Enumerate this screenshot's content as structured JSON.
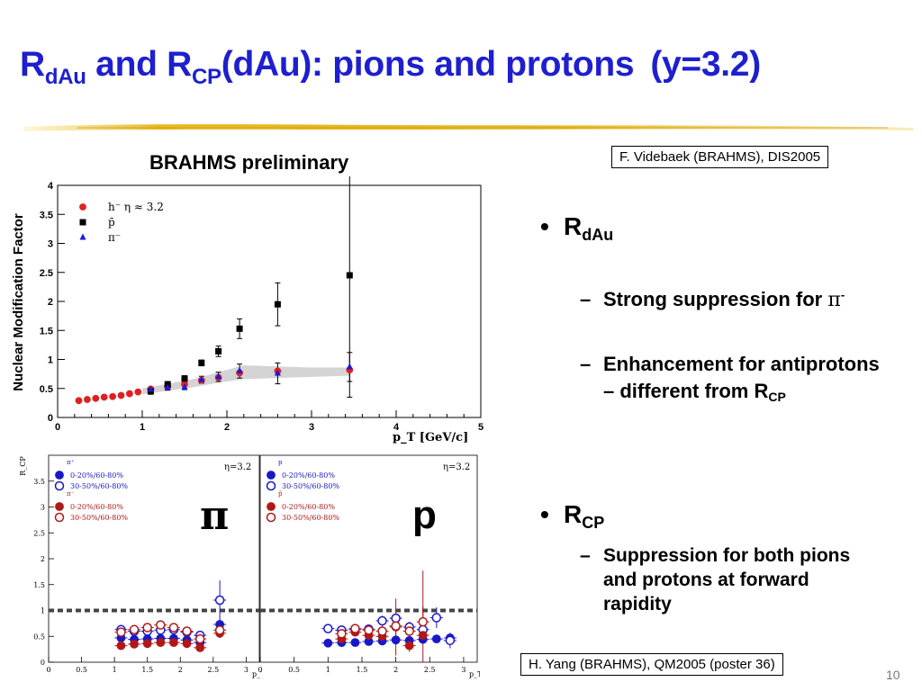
{
  "slide": {
    "title": {
      "r1": "R",
      "r1_sub": "dAu",
      "mid": " and R",
      "r2_sub": "CP",
      "rest": "(dAu): pions and protons",
      "y": "(y=3.2)"
    },
    "reference_top": "F. Videbaek (BRAHMS), DIS2005",
    "reference_bottom": "H. Yang (BRAHMS), QM2005 (poster 36)",
    "preliminary_label": "BRAHMS preliminary",
    "pi_symbol": "π",
    "p_symbol": "p",
    "page_number": "10",
    "bullets": [
      {
        "symbol": "•",
        "head": "R",
        "head_sub": "dAu",
        "subs": [
          {
            "dash": "–",
            "text": "Strong suppression for ",
            "pi": "π",
            "sup": "-"
          },
          {
            "dash": "–",
            "text": "Enhancement for antiprotons – different from R",
            "sub": "CP"
          }
        ]
      },
      {
        "symbol": "•",
        "head": "R",
        "head_sub": "CP",
        "subs": [
          {
            "dash": "–",
            "text": "Suppression for both pions and protons at forward rapidity"
          }
        ]
      }
    ]
  },
  "chart_data": [
    {
      "type": "scatter",
      "ylabel": "Nuclear Modification Factor",
      "xlabel": "p_T [GeV/c]",
      "xlim": [
        0,
        5
      ],
      "ylim": [
        0,
        4
      ],
      "xticks": [
        0,
        1,
        2,
        3,
        4,
        5
      ],
      "yticks": [
        0,
        0.5,
        1,
        1.5,
        2,
        2.5,
        3,
        3.5,
        4
      ],
      "legend": [
        {
          "label": "h⁻ η ≈ 3.2",
          "color": "#e02020",
          "marker": "circle"
        },
        {
          "label": "p̄",
          "color": "#000000",
          "marker": "square"
        },
        {
          "label": "π⁻",
          "color": "#1a1adc",
          "marker": "triangle"
        }
      ],
      "band": {
        "x": [
          1.0,
          1.3,
          1.6,
          1.9,
          2.2,
          2.6,
          3.0,
          3.45
        ],
        "low": [
          0.4,
          0.46,
          0.52,
          0.6,
          0.66,
          0.68,
          0.7,
          0.72
        ],
        "high": [
          0.5,
          0.58,
          0.66,
          0.78,
          0.9,
          0.88,
          0.86,
          0.86
        ],
        "color": "#d4d4d4"
      },
      "series": [
        {
          "name": "h⁻ η ≈ 3.2",
          "color": "#e02020",
          "marker": "circle",
          "x": [
            0.25,
            0.35,
            0.45,
            0.55,
            0.65,
            0.75,
            0.85,
            0.95,
            1.1,
            1.3,
            1.5,
            1.7,
            1.9,
            2.15,
            2.6,
            3.45
          ],
          "y": [
            0.29,
            0.31,
            0.33,
            0.35,
            0.36,
            0.38,
            0.41,
            0.44,
            0.49,
            0.53,
            0.57,
            0.64,
            0.69,
            0.77,
            0.8,
            0.82
          ],
          "err": [
            0,
            0,
            0,
            0,
            0,
            0,
            0,
            0,
            0,
            0,
            0,
            0,
            0,
            0,
            0,
            0
          ]
        },
        {
          "name": "p̄",
          "color": "#000000",
          "marker": "square",
          "x": [
            1.1,
            1.3,
            1.5,
            1.7,
            1.9,
            2.15,
            2.6,
            3.45
          ],
          "y": [
            0.45,
            0.57,
            0.67,
            0.94,
            1.14,
            1.53,
            1.95,
            2.45
          ],
          "err": [
            0.05,
            0.05,
            0.05,
            0.05,
            0.09,
            0.17,
            0.37,
            2.1
          ]
        },
        {
          "name": "π⁻",
          "color": "#1a1adc",
          "marker": "triangle",
          "x": [
            1.1,
            1.3,
            1.5,
            1.7,
            1.9,
            2.15,
            2.6,
            3.45
          ],
          "y": [
            0.48,
            0.51,
            0.52,
            0.65,
            0.7,
            0.8,
            0.76,
            0.87
          ],
          "err": [
            0.04,
            0.04,
            0.04,
            0.06,
            0.08,
            0.12,
            0.18,
            0.25
          ]
        }
      ]
    },
    {
      "type": "scatter",
      "ylabel": "R_CP",
      "xlabel": "p_T",
      "xlim": [
        0,
        3.2
      ],
      "ylim": [
        0,
        4
      ],
      "xticks": [
        0,
        0.5,
        1,
        1.5,
        2,
        2.5,
        3
      ],
      "yticks": [
        0,
        0.5,
        1,
        1.5,
        2,
        2.5,
        3,
        3.5
      ],
      "annotation": "η=3.2",
      "reference_line": 1.0,
      "legend_header_1": "π⁺",
      "legend_header_2": "π⁻",
      "legend": [
        {
          "label": "0-20%/60-80%",
          "color": "#1818c8",
          "filled": true
        },
        {
          "label": "30-50%/60-80%",
          "color": "#1818c8",
          "filled": false
        },
        {
          "label": "0-20%/60-80%",
          "color": "#b01818",
          "filled": true
        },
        {
          "label": "30-50%/60-80%",
          "color": "#b01818",
          "filled": false
        }
      ],
      "series": [
        {
          "color": "#1818c8",
          "filled": true,
          "x": [
            1.1,
            1.3,
            1.5,
            1.7,
            1.9,
            2.1,
            2.3,
            2.6
          ],
          "y": [
            0.47,
            0.44,
            0.45,
            0.46,
            0.46,
            0.43,
            0.38,
            0.73
          ],
          "err": [
            0.05,
            0.05,
            0.05,
            0.05,
            0.05,
            0.05,
            0.05,
            0.1
          ]
        },
        {
          "color": "#1818c8",
          "filled": false,
          "x": [
            1.1,
            1.3,
            1.5,
            1.7,
            1.9,
            2.1,
            2.3,
            2.6
          ],
          "y": [
            0.63,
            0.6,
            0.6,
            0.62,
            0.63,
            0.58,
            0.52,
            1.2
          ],
          "err": [
            0.06,
            0.06,
            0.06,
            0.06,
            0.06,
            0.06,
            0.08,
            0.38
          ]
        },
        {
          "color": "#b01818",
          "filled": true,
          "x": [
            1.1,
            1.3,
            1.5,
            1.7,
            1.9,
            2.1,
            2.3,
            2.6
          ],
          "y": [
            0.32,
            0.35,
            0.36,
            0.38,
            0.38,
            0.36,
            0.28,
            0.56
          ],
          "err": [
            0.04,
            0.04,
            0.04,
            0.04,
            0.04,
            0.04,
            0.05,
            0.09
          ]
        },
        {
          "color": "#b01818",
          "filled": false,
          "x": [
            1.1,
            1.3,
            1.5,
            1.7,
            1.9,
            2.1,
            2.3,
            2.6
          ],
          "y": [
            0.58,
            0.63,
            0.67,
            0.72,
            0.67,
            0.6,
            0.45,
            0.62
          ],
          "err": [
            0.06,
            0.06,
            0.06,
            0.06,
            0.06,
            0.06,
            0.07,
            0.1
          ]
        }
      ]
    },
    {
      "type": "scatter",
      "ylabel": "",
      "xlabel": "p_T",
      "xlim": [
        0,
        3.2
      ],
      "ylim": [
        0,
        4
      ],
      "xticks": [
        0,
        0.5,
        1,
        1.5,
        2,
        2.5,
        3
      ],
      "yticks": [],
      "annotation": "η=3.2",
      "reference_line": 1.0,
      "legend_header_1": "p",
      "legend_header_2": "p̄",
      "legend": [
        {
          "label": "0-20%/60-80%",
          "color": "#1818c8",
          "filled": true
        },
        {
          "label": "30-50%/60-80%",
          "color": "#1818c8",
          "filled": false
        },
        {
          "label": "0-20%/60-80%",
          "color": "#b01818",
          "filled": true
        },
        {
          "label": "30-50%/60-80%",
          "color": "#b01818",
          "filled": false
        }
      ],
      "series": [
        {
          "color": "#1818c8",
          "filled": true,
          "x": [
            1.0,
            1.2,
            1.4,
            1.6,
            1.8,
            2.0,
            2.2,
            2.4,
            2.6,
            2.8
          ],
          "y": [
            0.37,
            0.38,
            0.38,
            0.4,
            0.41,
            0.43,
            0.42,
            0.44,
            0.45,
            0.47
          ],
          "err": [
            0.04,
            0.04,
            0.04,
            0.04,
            0.04,
            0.04,
            0.05,
            0.05,
            0.06,
            0.08
          ]
        },
        {
          "color": "#1818c8",
          "filled": false,
          "x": [
            1.0,
            1.2,
            1.4,
            1.6,
            1.8,
            2.0,
            2.2,
            2.4,
            2.6,
            2.8
          ],
          "y": [
            0.65,
            0.62,
            0.63,
            0.64,
            0.8,
            0.85,
            0.68,
            0.63,
            0.86,
            0.42
          ],
          "err": [
            0.06,
            0.06,
            0.06,
            0.08,
            0.1,
            0.12,
            0.1,
            0.15,
            0.2,
            0.15
          ]
        },
        {
          "color": "#b01818",
          "filled": true,
          "x": [
            1.2,
            1.4,
            1.6,
            1.8,
            2.0,
            2.2,
            2.4
          ],
          "y": [
            0.45,
            0.58,
            0.52,
            0.5,
            0.68,
            0.32,
            0.52
          ],
          "err": [
            0.05,
            0.06,
            0.08,
            0.12,
            0.55,
            0.12,
            1.25
          ]
        },
        {
          "color": "#b01818",
          "filled": false,
          "x": [
            1.2,
            1.4,
            1.6,
            1.8,
            2.0,
            2.2,
            2.4
          ],
          "y": [
            0.55,
            0.65,
            0.62,
            0.6,
            0.7,
            0.6,
            0.78
          ],
          "err": [
            0.06,
            0.08,
            0.1,
            0.12,
            0.2,
            0.18,
            0.3
          ]
        }
      ]
    }
  ]
}
